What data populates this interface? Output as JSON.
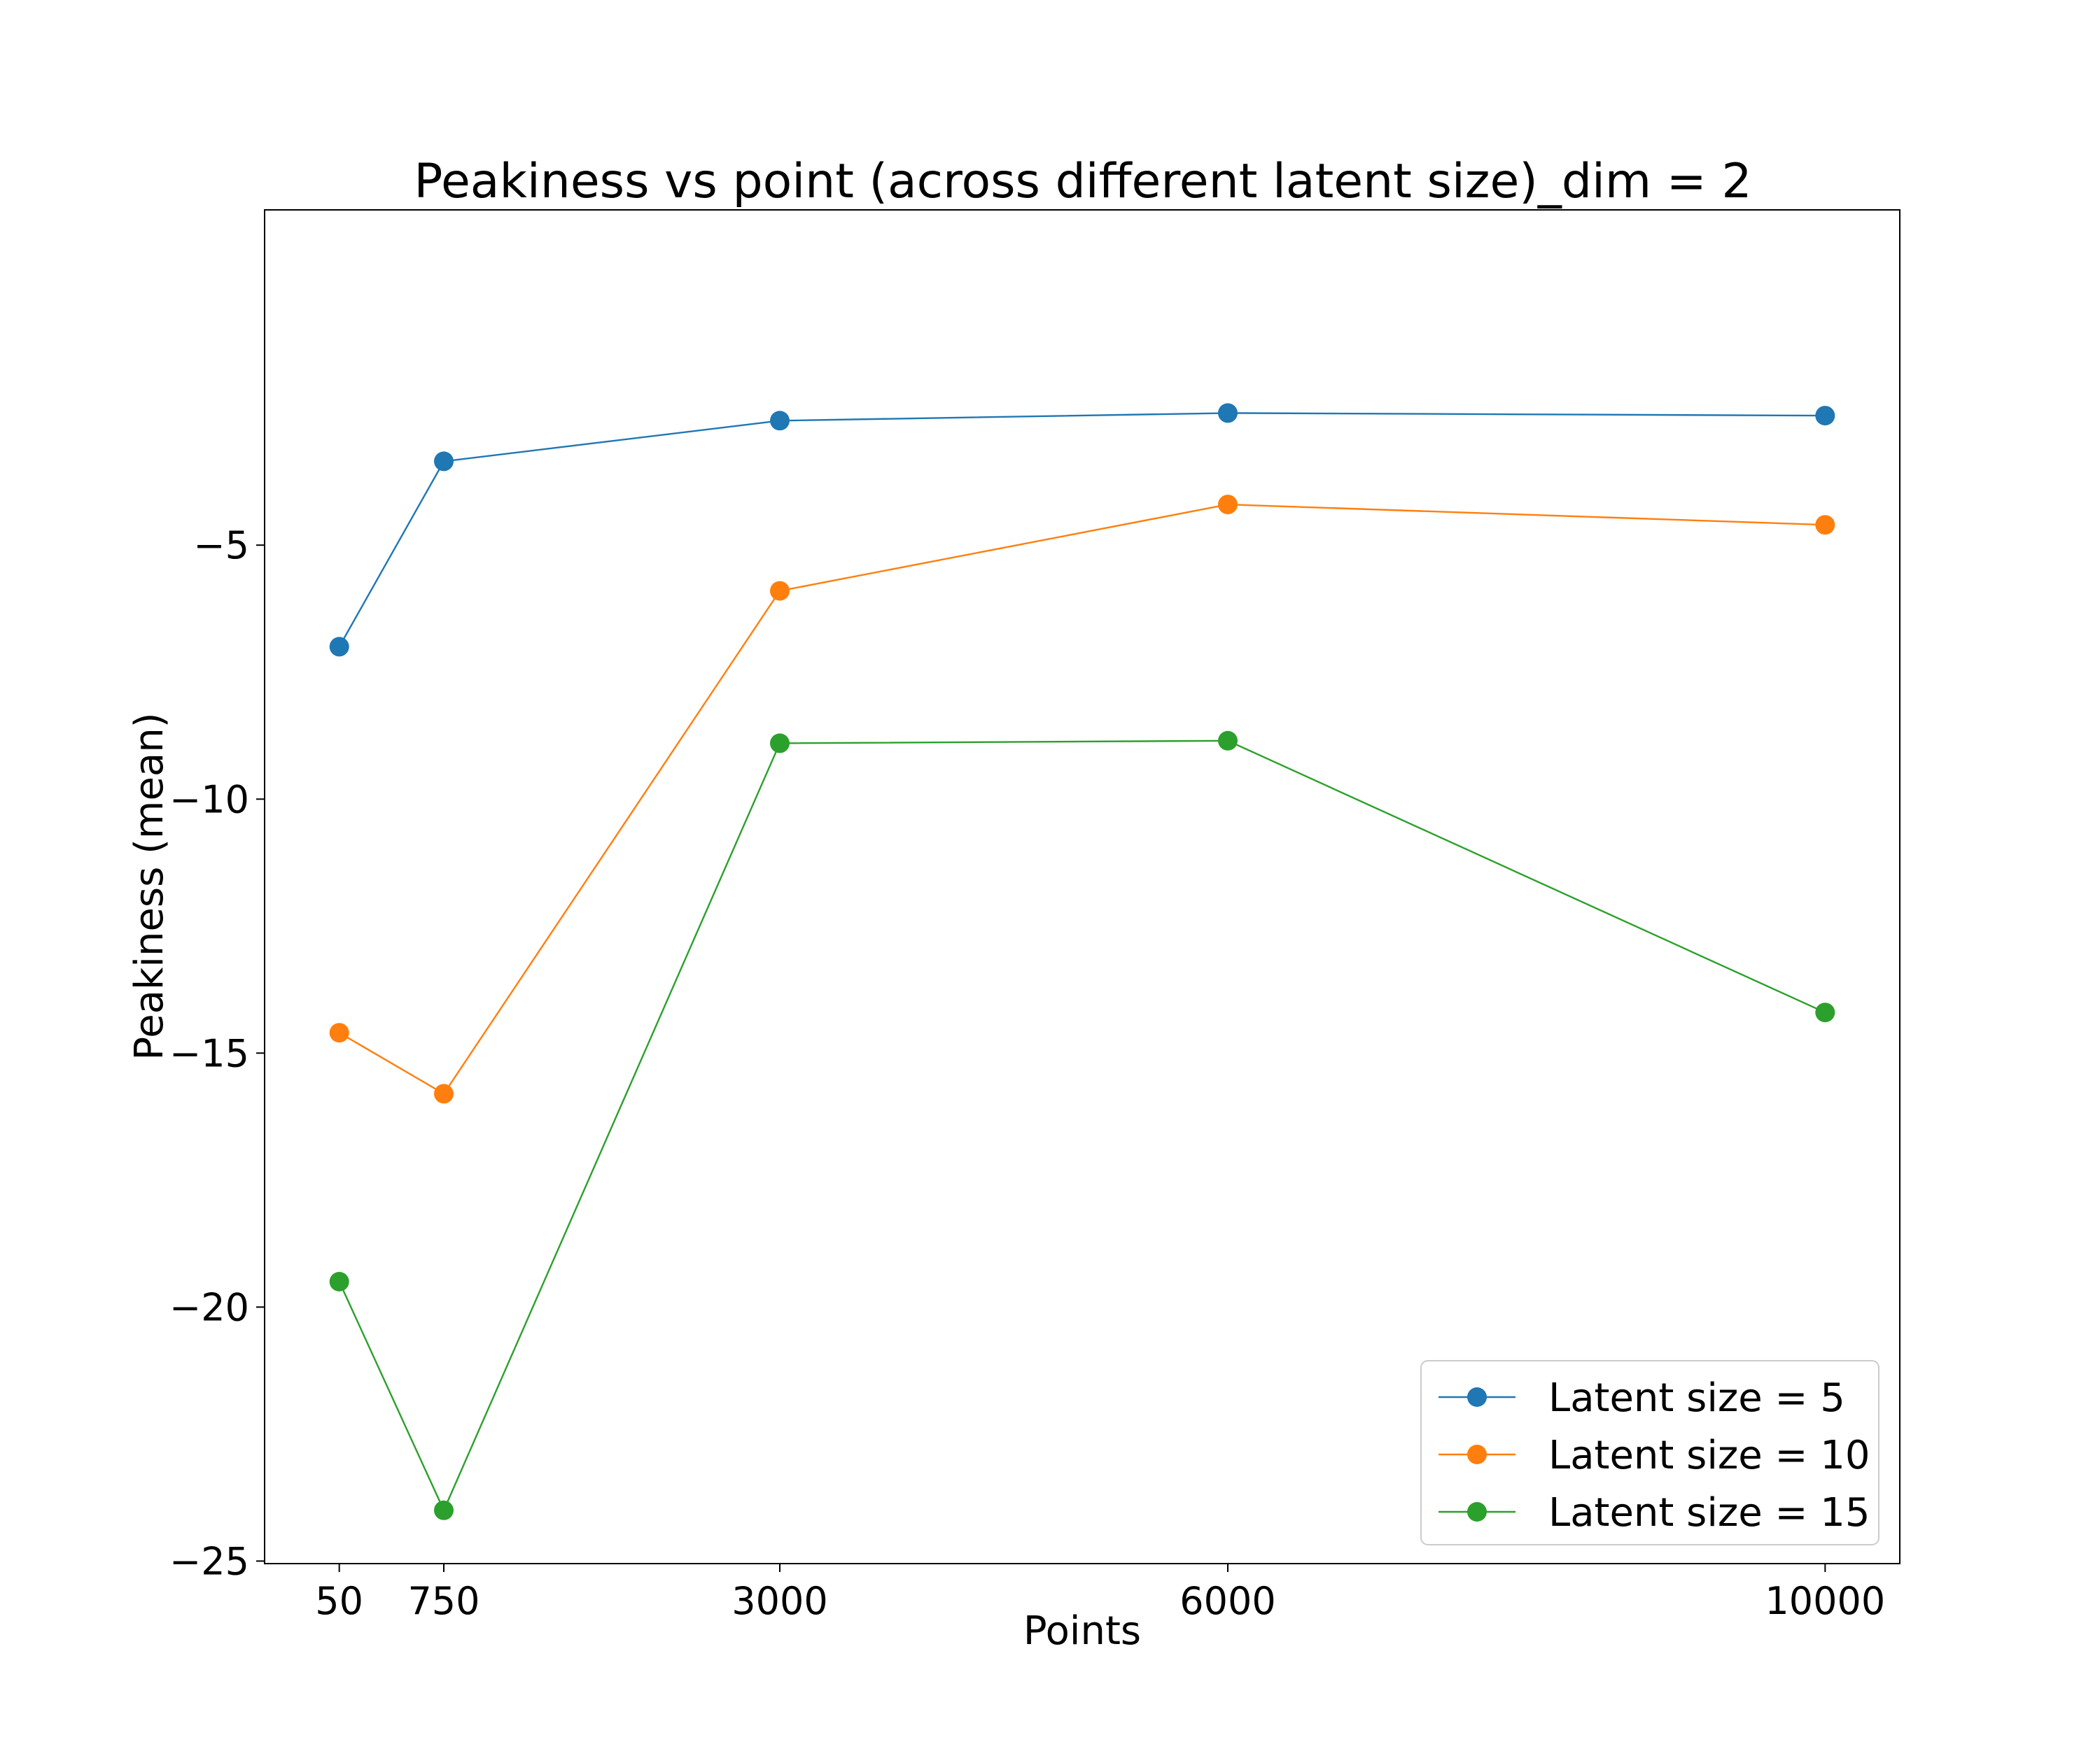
{
  "chart_data": {
    "type": "line",
    "title": "Peakiness vs point (across different latent size)_dim = 2",
    "xlabel": "Points",
    "ylabel": "Peakiness (mean)",
    "x": [
      50,
      750,
      3000,
      6000,
      10000
    ],
    "xticks": [
      50,
      750,
      3000,
      6000,
      10000
    ],
    "xlim": [
      -450,
      10500
    ],
    "yticks": [
      -5,
      -10,
      -15,
      -20,
      -25
    ],
    "ytick_labels": [
      "−5",
      "−10",
      "−15",
      "−20",
      "−25"
    ],
    "ylim": [
      -25.05,
      1.6
    ],
    "grid": false,
    "legend_position": "lower-right",
    "series": [
      {
        "name": "Latent size = 5",
        "color": "#1f77b4",
        "values": [
          -7.0,
          -3.35,
          -2.55,
          -2.4,
          -2.45
        ]
      },
      {
        "name": "Latent size = 10",
        "color": "#ff7f0e",
        "values": [
          -14.6,
          -15.8,
          -5.9,
          -4.2,
          -4.6
        ]
      },
      {
        "name": "Latent size = 15",
        "color": "#2ca02c",
        "values": [
          -19.5,
          -24.0,
          -8.9,
          -8.85,
          -14.2
        ]
      }
    ]
  }
}
